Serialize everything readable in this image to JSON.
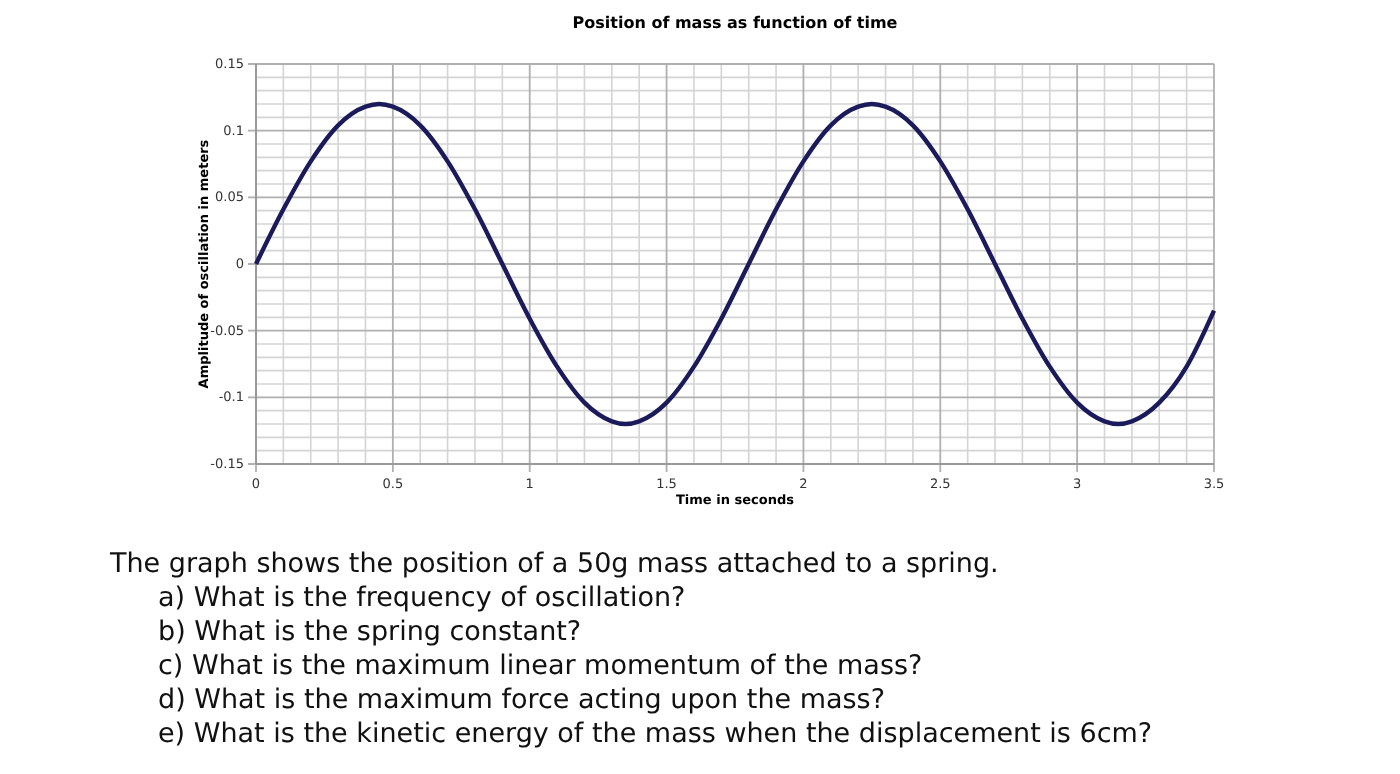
{
  "chart_data": {
    "type": "line",
    "title": "Position of mass as function of time",
    "xlabel": "Time in seconds",
    "ylabel": "Amplitude of oscillation in meters",
    "x": [
      0,
      0.1,
      0.2,
      0.3,
      0.4,
      0.45,
      0.5,
      0.6,
      0.7,
      0.8,
      0.9,
      1.0,
      1.1,
      1.2,
      1.3,
      1.35,
      1.4,
      1.5,
      1.6,
      1.7,
      1.8,
      1.9,
      2.0,
      2.1,
      2.2,
      2.25,
      2.3,
      2.4,
      2.5,
      2.6,
      2.7,
      2.8,
      2.9,
      3.0,
      3.1,
      3.15,
      3.2,
      3.3,
      3.4,
      3.5
    ],
    "series": [
      {
        "color": "#1b1b5c",
        "values": [
          0,
          0.041,
          0.077,
          0.104,
          0.118,
          0.12,
          0.118,
          0.104,
          0.077,
          0.041,
          0,
          -0.041,
          -0.077,
          -0.104,
          -0.118,
          -0.12,
          -0.118,
          -0.104,
          -0.077,
          -0.041,
          0,
          0.041,
          0.077,
          0.104,
          0.118,
          0.12,
          0.118,
          0.104,
          0.077,
          0.041,
          0,
          -0.041,
          -0.077,
          -0.104,
          -0.118,
          -0.12,
          -0.118,
          -0.104,
          -0.077,
          -0.035
        ]
      }
    ],
    "xlim": [
      0,
      3.5
    ],
    "xticks": [
      0,
      0.5,
      1,
      1.5,
      2,
      2.5,
      3,
      3.5
    ],
    "ylim": [
      -0.15,
      0.15
    ],
    "yticks": [
      -0.15,
      -0.1,
      -0.05,
      0,
      0.05,
      0.1,
      0.15
    ],
    "grid": true,
    "marker": "none",
    "line_style": "solid",
    "annotations": [
      "The graph shows the position of a 50g mass attached to a spring.",
      "a)  What is the frequency of oscillation?",
      "b)  What is the spring constant?",
      "c)  What is the maximum linear momentum of the mass?",
      "d)  What is the maximum force acting upon the mass?",
      "e)  What is the kinetic energy of the mass when the displacement is 6cm?"
    ]
  }
}
